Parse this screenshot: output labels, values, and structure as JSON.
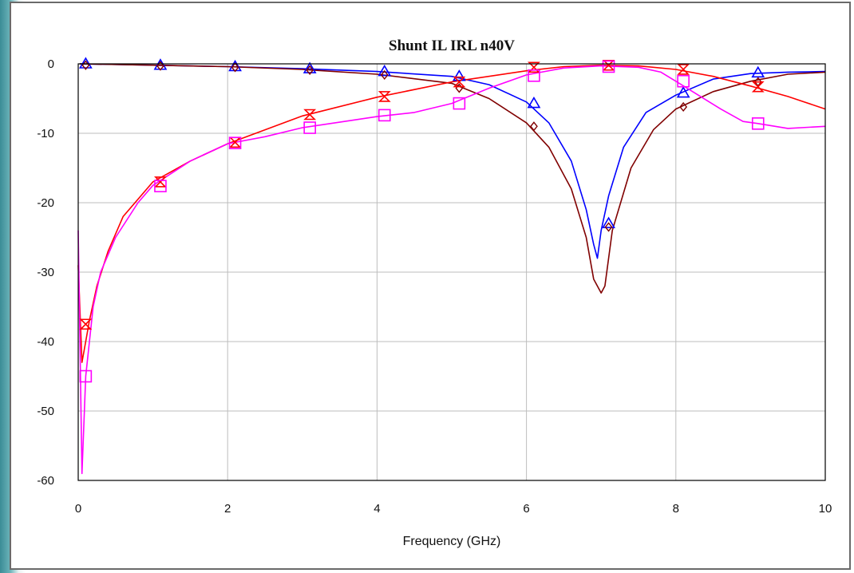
{
  "chart_data": {
    "type": "line",
    "title": "Shunt IL IRL n40V",
    "xlabel": "Frequency (GHz)",
    "ylabel": "",
    "xlim": [
      0,
      10
    ],
    "ylim": [
      -60,
      0
    ],
    "xticks": [
      "0",
      "2",
      "4",
      "6",
      "8",
      "10"
    ],
    "yticks": [
      "0",
      "-10",
      "-20",
      "-30",
      "-40",
      "-50",
      "-60"
    ],
    "grid": true,
    "series": [
      {
        "color": "#0000ff",
        "marker": "triangle",
        "x": [
          0.02,
          1,
          2,
          3,
          4,
          5,
          5.5,
          6,
          6.3,
          6.6,
          6.8,
          6.9,
          6.95,
          7.0,
          7.1,
          7.3,
          7.6,
          8.0,
          8.5,
          9.0,
          9.5,
          10.0
        ],
        "y": [
          0,
          -0.2,
          -0.4,
          -0.7,
          -1.1,
          -1.8,
          -3.0,
          -5.5,
          -8.5,
          -14,
          -21,
          -26,
          -28,
          -24,
          -19,
          -12,
          -7,
          -4.5,
          -2.2,
          -1.4,
          -1.2,
          -1.1
        ],
        "markers_x": [
          0.1,
          1.1,
          2.1,
          3.1,
          4.1,
          5.1,
          6.1,
          7.1,
          8.1,
          9.1
        ],
        "markers_y": [
          0,
          -0.2,
          -0.4,
          -0.7,
          -1.1,
          -1.8,
          -5.7,
          -23,
          -4.2,
          -1.3
        ]
      },
      {
        "color": "#800000",
        "marker": "diamond",
        "x": [
          0.02,
          1,
          2,
          3,
          4,
          5,
          5.5,
          6,
          6.3,
          6.6,
          6.8,
          6.9,
          7.0,
          7.05,
          7.15,
          7.4,
          7.7,
          8.0,
          8.5,
          9.0,
          9.5,
          10.0
        ],
        "y": [
          0,
          -0.2,
          -0.4,
          -0.8,
          -1.5,
          -2.8,
          -5.0,
          -8.5,
          -12,
          -18,
          -25,
          -31,
          -33,
          -32,
          -24,
          -15,
          -9.5,
          -6.5,
          -4.0,
          -2.5,
          -1.5,
          -1.2
        ],
        "markers_x": [
          0.1,
          1.1,
          2.1,
          3.1,
          4.1,
          5.1,
          6.1,
          7.1,
          8.1,
          9.1
        ],
        "markers_y": [
          -0.2,
          -0.3,
          -0.5,
          -0.9,
          -1.6,
          -3.5,
          -9.0,
          -23.5,
          -6.2,
          -2.6
        ]
      },
      {
        "color": "#ff0000",
        "marker": "hourglass",
        "x": [
          0.0,
          0.05,
          0.1,
          0.15,
          0.25,
          0.4,
          0.6,
          1.0,
          1.5,
          2.0,
          3.0,
          4.0,
          5.0,
          6.0,
          6.5,
          7.0,
          7.5,
          8.0,
          8.5,
          9.0,
          9.5,
          10.0
        ],
        "y": [
          -29,
          -43,
          -40,
          -37,
          -32,
          -27,
          -22,
          -17,
          -14,
          -11.5,
          -7.5,
          -4.8,
          -2.6,
          -1.0,
          -0.4,
          -0.2,
          -0.3,
          -0.8,
          -1.8,
          -3.2,
          -4.7,
          -6.5
        ],
        "markers_x": [
          0.1,
          1.1,
          2.1,
          3.1,
          4.1,
          5.1,
          6.1,
          7.1,
          8.1,
          9.1
        ],
        "markers_y": [
          -37.5,
          -17,
          -11.3,
          -7.3,
          -4.7,
          -2.6,
          -0.5,
          -0.2,
          -0.8,
          -3.3
        ]
      },
      {
        "color": "#ff00ff",
        "marker": "square",
        "x": [
          0.0,
          0.05,
          0.1,
          0.2,
          0.3,
          0.5,
          0.8,
          1.0,
          1.5,
          2.0,
          2.5,
          3.0,
          3.5,
          4.0,
          4.5,
          5.0,
          5.5,
          6.0,
          6.5,
          7.0,
          7.5,
          7.8,
          8.0,
          8.3,
          8.6,
          8.9,
          9.1,
          9.5,
          10.0
        ],
        "y": [
          -24,
          -59,
          -45,
          -35,
          -30,
          -25,
          -20,
          -17.5,
          -14,
          -11.5,
          -10.5,
          -9.2,
          -8.4,
          -7.6,
          -7.0,
          -5.7,
          -3.5,
          -1.6,
          -0.6,
          -0.3,
          -0.5,
          -1.2,
          -2.5,
          -4.5,
          -6.5,
          -8.3,
          -8.6,
          -9.3,
          -9.0
        ],
        "markers_x": [
          0.1,
          1.1,
          2.1,
          3.1,
          4.1,
          5.1,
          6.1,
          7.1,
          8.1,
          9.1
        ],
        "markers_y": [
          -45,
          -17.6,
          -11.4,
          -9.2,
          -7.4,
          -5.7,
          -1.7,
          -0.4,
          -2.5,
          -8.6
        ]
      }
    ]
  }
}
